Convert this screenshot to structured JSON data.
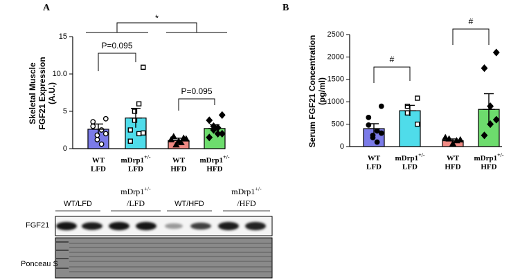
{
  "chart_data": [
    {
      "type": "bar",
      "title": "A",
      "ylabel": [
        "Skeletal Muscle",
        "FGF21 Expression",
        "(A.U.)"
      ],
      "categories": [
        {
          "name": "WT",
          "diet": "LFD"
        },
        {
          "name": "mDrp1",
          "sup": "+/-",
          "diet": "LFD"
        },
        {
          "name": "WT",
          "diet": "HFD"
        },
        {
          "name": "mDrp1",
          "sup": "+/-",
          "diet": "HFD"
        }
      ],
      "values": [
        2.6,
        4.1,
        1.1,
        2.7
      ],
      "errors": [
        0.7,
        1.3,
        0.3,
        0.5
      ],
      "colors": [
        "#7b7be8",
        "#4fdcea",
        "#f08a84",
        "#6ddc6d"
      ],
      "markers": [
        {
          "shape": "circle",
          "filled": false
        },
        {
          "shape": "square",
          "filled": false
        },
        {
          "shape": "triangle",
          "filled": true
        },
        {
          "shape": "diamond",
          "filled": true
        }
      ],
      "points": [
        [
          4.0,
          3.6,
          2.5,
          1.8,
          1.2,
          0.6,
          3.0,
          2.0
        ],
        [
          10.9,
          2.5,
          2.0,
          3.8,
          5.0,
          6.0,
          1.0,
          2.1
        ],
        [
          1.3,
          1.6,
          0.8,
          1.0,
          0.5,
          1.4,
          1.2
        ],
        [
          4.5,
          3.8,
          2.0,
          2.5,
          3.0,
          2.8,
          1.5,
          2.0
        ]
      ],
      "ylim": [
        0,
        15
      ],
      "yticks": [
        0,
        {
          "value": 5,
          "label": "5"
        },
        {
          "value": 10,
          "label": "10.0"
        },
        {
          "value": 15,
          "label": "15"
        }
      ],
      "comparisons": [
        {
          "label": "P=0.095",
          "pair": [
            0,
            1
          ]
        },
        {
          "label": "P=0.095",
          "pair": [
            2,
            3
          ]
        },
        {
          "label": "*",
          "pair": [
            [
              0,
              1
            ],
            [
              2,
              3
            ]
          ]
        }
      ]
    },
    {
      "type": "bar",
      "title": "B",
      "ylabel": [
        "Serum FGF21 Concentration",
        "(pg/ml)"
      ],
      "categories": [
        {
          "name": "WT",
          "diet": "LFD"
        },
        {
          "name": "mDrp1",
          "sup": "+/-",
          "diet": "LFD"
        },
        {
          "name": "WT",
          "diet": "HFD"
        },
        {
          "name": "mDrp1",
          "sup": "+/-",
          "diet": "HFD"
        }
      ],
      "values": [
        400,
        800,
        130,
        830
      ],
      "errors": [
        110,
        120,
        40,
        350
      ],
      "colors": [
        "#7b7be8",
        "#4fdcea",
        "#f08a84",
        "#6ddc6d"
      ],
      "markers": [
        {
          "shape": "circle",
          "filled": true
        },
        {
          "shape": "square",
          "filled": false
        },
        {
          "shape": "triangle",
          "filled": true
        },
        {
          "shape": "diamond",
          "filled": true
        }
      ],
      "points": [
        [
          900,
          650,
          350,
          250,
          200,
          100,
          480,
          300
        ],
        [
          1080,
          900,
          750,
          500
        ],
        [
          150,
          170,
          60,
          130,
          200
        ],
        [
          2100,
          1750,
          900,
          500,
          250,
          600
        ]
      ],
      "ylim": [
        0,
        2500
      ],
      "yticks": [
        0,
        500,
        1000,
        1500,
        2000,
        2500
      ],
      "comparisons": [
        {
          "label": "#",
          "pair": [
            0,
            1
          ]
        },
        {
          "label": "#",
          "pair": [
            2,
            3
          ]
        }
      ]
    }
  ],
  "blot": {
    "groups": [
      {
        "name": "WT/LFD"
      },
      {
        "name": "mDrp1",
        "sup": "+/-",
        "diet": "/LFD"
      },
      {
        "name": "WT/HFD"
      },
      {
        "name": "mDrp1",
        "sup": "+/-",
        "diet": "/HFD"
      }
    ],
    "rows": [
      "FGF21",
      "Ponceau S"
    ]
  }
}
